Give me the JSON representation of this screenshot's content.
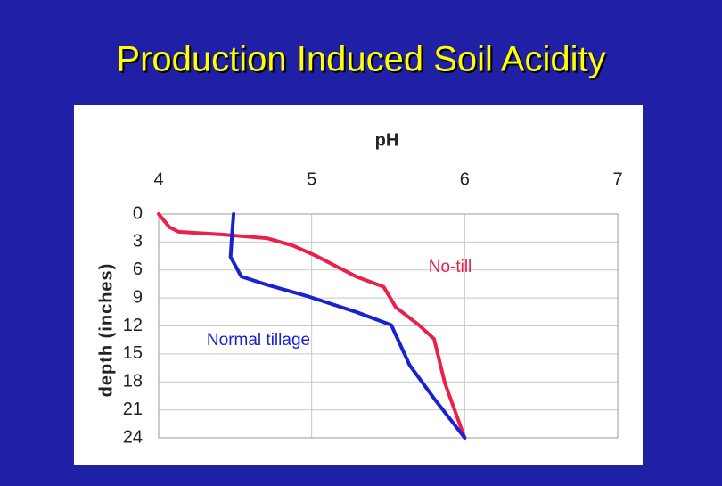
{
  "chart_data": {
    "type": "line",
    "title": "Production Induced Soil Acidity",
    "x_label": "pH",
    "y_label": "depth (inches)",
    "xlim": [
      4,
      7
    ],
    "xticks": [
      4,
      5,
      6,
      7
    ],
    "ylim": [
      0,
      24
    ],
    "yticks": [
      0,
      3,
      6,
      9,
      12,
      15,
      18,
      21,
      24
    ],
    "y_reversed": true,
    "x_axis_top": true,
    "grid": true,
    "series": [
      {
        "name": "No-till",
        "color": "#e8204a",
        "x": [
          4.0,
          4.07,
          4.13,
          4.42,
          4.71,
          4.88,
          5.03,
          5.29,
          5.47,
          5.55,
          5.7,
          5.8,
          5.87,
          6.0
        ],
        "values": [
          0,
          1.4,
          1.9,
          2.2,
          2.6,
          3.4,
          4.5,
          6.7,
          7.8,
          10.0,
          11.9,
          13.4,
          18.1,
          24
        ]
      },
      {
        "name": "Normal tillage",
        "color": "#1a22d0",
        "x": [
          4.49,
          4.48,
          4.47,
          4.54,
          4.71,
          4.97,
          5.29,
          5.52,
          5.64,
          5.81,
          6.0
        ],
        "values": [
          0,
          2.1,
          4.6,
          6.7,
          7.6,
          8.8,
          10.5,
          11.9,
          16.2,
          20,
          24
        ]
      }
    ]
  }
}
